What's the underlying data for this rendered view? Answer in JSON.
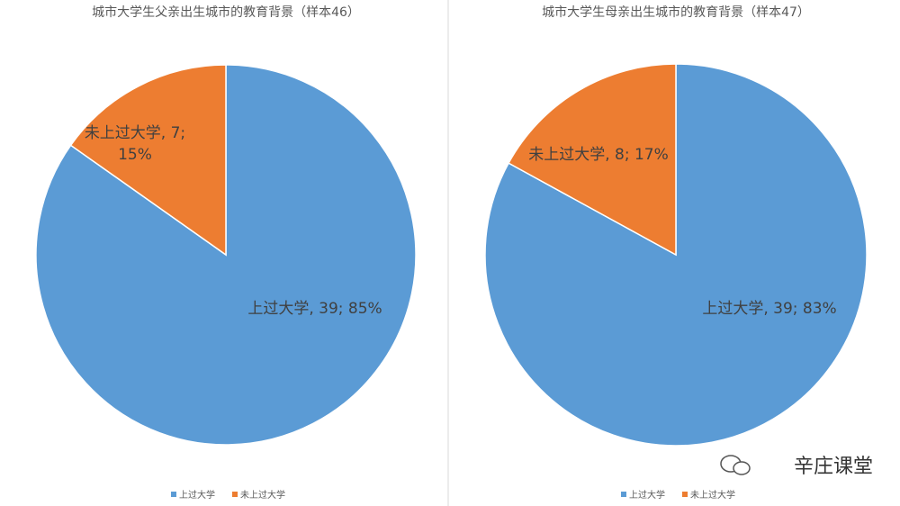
{
  "charts": [
    {
      "type": "pie",
      "title": "城市大学生父亲出生城市的教育背景（样本46）",
      "categories": [
        "上过大学",
        "未上过大学"
      ],
      "values": [
        39,
        7
      ],
      "value_labels": [
        "上过大学, 39; 85%",
        "未上过大学, 7; 15%"
      ],
      "colors": [
        "#5b9bd5",
        "#ed7d31"
      ]
    },
    {
      "type": "pie",
      "title": "城市大学生母亲出生城市的教育背景（样本47）",
      "categories": [
        "上过大学",
        "未上过大学"
      ],
      "values": [
        39,
        8
      ],
      "value_labels": [
        "上过大学, 39; 83%",
        "未上过大学, 8; 17%"
      ],
      "colors": [
        "#5b9bd5",
        "#ed7d31"
      ]
    }
  ],
  "watermark": "辛庄课堂"
}
